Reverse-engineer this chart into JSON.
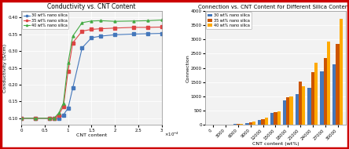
{
  "left": {
    "title": "Conductivity vs. CNT Content",
    "xlabel": "CNT content",
    "ylabel": "Conductivity (S/cm)",
    "xlim": [
      0,
      0.0003
    ],
    "ylim": [
      0.08,
      0.42
    ],
    "xticks": [
      0,
      5e-05,
      0.0001,
      0.00015,
      0.0002,
      0.00025,
      0.0003
    ],
    "xtick_labels": [
      "0",
      "0.5",
      "1",
      "1.5",
      "2",
      "2.5",
      "3"
    ],
    "yticks": [
      0.1,
      0.15,
      0.2,
      0.25,
      0.3,
      0.35,
      0.4
    ],
    "series": [
      {
        "label": "30 wt% nano silica",
        "color": "#4477bb",
        "marker": "s",
        "x": [
          0,
          3e-05,
          6e-05,
          7e-05,
          8e-05,
          9e-05,
          0.0001,
          0.00011,
          0.00013,
          0.00015,
          0.00017,
          0.0002,
          0.00024,
          0.00027,
          0.0003
        ],
        "y": [
          0.1,
          0.1,
          0.1,
          0.1,
          0.1,
          0.11,
          0.13,
          0.19,
          0.31,
          0.34,
          0.345,
          0.349,
          0.351,
          0.352,
          0.353
        ]
      },
      {
        "label": "35 wt% nano silica",
        "color": "#dd4444",
        "marker": "s",
        "x": [
          0,
          3e-05,
          6e-05,
          7e-05,
          8e-05,
          9e-05,
          0.0001,
          0.00011,
          0.00013,
          0.00015,
          0.00017,
          0.0002,
          0.00024,
          0.00027,
          0.0003
        ],
        "y": [
          0.1,
          0.1,
          0.1,
          0.1,
          0.11,
          0.135,
          0.24,
          0.325,
          0.36,
          0.365,
          0.367,
          0.369,
          0.371,
          0.371,
          0.372
        ]
      },
      {
        "label": "40 wt% nano silica",
        "color": "#44aa44",
        "marker": "^",
        "x": [
          0,
          3e-05,
          6e-05,
          7e-05,
          8e-05,
          9e-05,
          0.0001,
          0.00011,
          0.00013,
          0.00015,
          0.00017,
          0.0002,
          0.00024,
          0.00027,
          0.0003
        ],
        "y": [
          0.1,
          0.1,
          0.1,
          0.1,
          0.115,
          0.145,
          0.265,
          0.345,
          0.385,
          0.39,
          0.391,
          0.389,
          0.39,
          0.391,
          0.393
        ]
      }
    ],
    "background": "#f2f2f2",
    "grid_color": "white"
  },
  "right": {
    "title": "Connection vs. CNT Content for Different Silica Contents",
    "xlabel": "CNT content (wt%)",
    "ylabel": "Connection",
    "ylim": [
      0,
      4000
    ],
    "yticks": [
      0,
      500,
      1000,
      1500,
      2000,
      2500,
      3000,
      3500,
      4000
    ],
    "cat_labels": [
      "0",
      "3000",
      "6000",
      "9000",
      "12000",
      "15000",
      "18000",
      "21000",
      "24000",
      "27000",
      "30000"
    ],
    "series": [
      {
        "label": "30 wt% nano silica",
        "color": "#4477bb",
        "values": [
          0,
          2,
          25,
          75,
          170,
          420,
          870,
          1070,
          1300,
          1890,
          2120
        ]
      },
      {
        "label": "35 wt% nano silica",
        "color": "#cc5500",
        "values": [
          0,
          3,
          35,
          90,
          200,
          450,
          960,
          1530,
          1840,
          2340,
          2830
        ]
      },
      {
        "label": "40 wt% nano silica",
        "color": "#ffaa00",
        "values": [
          0,
          4,
          50,
          110,
          260,
          490,
          1010,
          1360,
          2170,
          2920,
          3720
        ]
      }
    ],
    "background": "#f2f2f2",
    "grid_color": "white"
  },
  "fig_bg": "#ffffff",
  "border_color": "#cc0000",
  "border_lw": 2.5
}
